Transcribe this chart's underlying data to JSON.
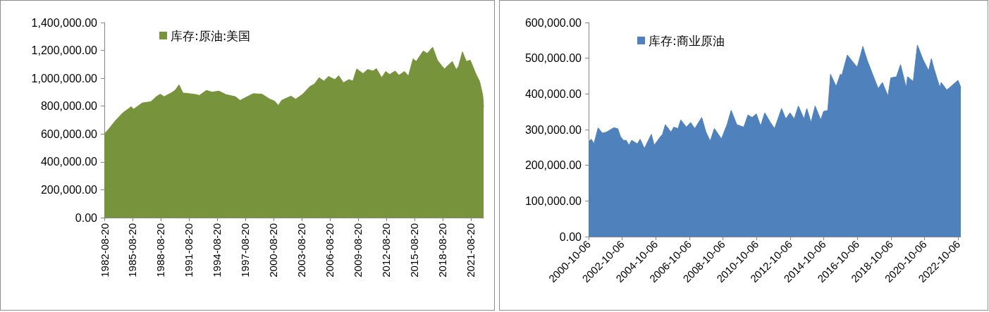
{
  "chart_data": [
    {
      "type": "area",
      "legend": "top left",
      "grid": false,
      "xlim": [
        "1982-08-20",
        "2023-01"
      ],
      "xticks": [
        "1982-08-20",
        "1985-08-20",
        "1988-08-20",
        "1991-08-20",
        "1994-08-20",
        "1997-08-20",
        "2000-08-20",
        "2003-08-20",
        "2006-08-20",
        "2009-08-20",
        "2012-08-20",
        "2015-08-20",
        "2018-08-20",
        "2021-08-20"
      ],
      "ylim": [
        0,
        1400000
      ],
      "yticks": [
        {
          "value": 0,
          "label": "0.00"
        },
        {
          "value": 200000,
          "label": "200,000.00"
        },
        {
          "value": 400000,
          "label": "400,000.00"
        },
        {
          "value": 600000,
          "label": "600,000.00"
        },
        {
          "value": 800000,
          "label": "800,000.00"
        },
        {
          "value": 1000000,
          "label": "1,000,000.00"
        },
        {
          "value": 1200000,
          "label": "1,200,000.00"
        },
        {
          "value": 1400000,
          "label": "1,400,000.00"
        }
      ],
      "x": [
        "1982-08-20",
        "1983-02",
        "1983-11",
        "1984-08",
        "1985-07",
        "1985-10",
        "1986-09",
        "1987-08",
        "1988-03",
        "1988-08",
        "1989-01",
        "1989-10",
        "1990-03",
        "1990-08",
        "1991-01",
        "1991-09",
        "1992-06",
        "1992-10",
        "1993-07",
        "1994-02",
        "1994-11",
        "1995-08",
        "1996-08",
        "1997-02",
        "1997-08",
        "1998-07",
        "1999-06",
        "2000-04",
        "2000-10",
        "2001-03",
        "2001-07",
        "2002-07",
        "2003-01",
        "2003-10",
        "2004-07",
        "2005-01",
        "2005-07",
        "2006-01",
        "2006-07",
        "2007-03",
        "2007-08",
        "2008-02",
        "2008-09",
        "2009-02",
        "2009-07",
        "2010-03",
        "2010-09",
        "2011-04",
        "2011-08",
        "2012-03",
        "2012-08",
        "2013-01",
        "2013-08",
        "2014-01",
        "2014-08",
        "2015-01",
        "2015-07",
        "2015-11",
        "2016-08",
        "2017-01",
        "2017-08",
        "2018-02",
        "2018-07",
        "2018-11",
        "2019-04",
        "2019-09",
        "2020-02",
        "2020-05",
        "2020-10",
        "2021-03",
        "2021-08",
        "2022-03",
        "2022-08",
        "2022-12",
        "2023-01"
      ],
      "series": [
        {
          "name": "库存:原油:美国",
          "color": "#77933c",
          "values": [
            602000,
            634000,
            697000,
            751000,
            796000,
            778000,
            823000,
            832000,
            868000,
            886000,
            868000,
            895000,
            913000,
            953000,
            895000,
            890000,
            883000,
            877000,
            913000,
            901000,
            908000,
            883000,
            868000,
            841000,
            859000,
            890000,
            886000,
            850000,
            836000,
            805000,
            841000,
            872000,
            850000,
            886000,
            940000,
            959000,
            1004000,
            980000,
            1013000,
            991000,
            1018000,
            968000,
            991000,
            980000,
            1067000,
            1034000,
            1063000,
            1052000,
            1070000,
            1004000,
            1049000,
            1027000,
            1052000,
            1022000,
            1049000,
            1016000,
            1139000,
            1121000,
            1196000,
            1178000,
            1223000,
            1130000,
            1094000,
            1067000,
            1094000,
            1121000,
            1063000,
            1085000,
            1189000,
            1121000,
            1130000,
            1034000,
            977000,
            877000,
            796000
          ]
        }
      ]
    },
    {
      "type": "area",
      "legend": "top left",
      "grid": false,
      "xlim": [
        "2000-10-06",
        "2022-12"
      ],
      "xticks": [
        "2000-10-06",
        "2002-10-06",
        "2004-10-06",
        "2006-10-06",
        "2008-10-06",
        "2010-10-06",
        "2012-10-06",
        "2014-10-06",
        "2016-10-06",
        "2018-10-06",
        "2020-10-06",
        "2022-10-06"
      ],
      "ylim": [
        0,
        600000
      ],
      "yticks": [
        {
          "value": 0,
          "label": "0.00"
        },
        {
          "value": 100000,
          "label": "100,000.00"
        },
        {
          "value": 200000,
          "label": "200,000.00"
        },
        {
          "value": 300000,
          "label": "300,000.00"
        },
        {
          "value": 400000,
          "label": "400,000.00"
        },
        {
          "value": 500000,
          "label": "500,000.00"
        },
        {
          "value": 600000,
          "label": "600,000.00"
        }
      ],
      "x": [
        "2000-10-06",
        "2000-12",
        "2001-02",
        "2001-05",
        "2001-08",
        "2001-11",
        "2002-04",
        "2002-07",
        "2002-09",
        "2002-11",
        "2003-01",
        "2003-03",
        "2003-05",
        "2003-09",
        "2003-11",
        "2004-02",
        "2004-07",
        "2004-09",
        "2005-01",
        "2005-03",
        "2005-05",
        "2005-09",
        "2005-11",
        "2006-02",
        "2006-04",
        "2006-08",
        "2006-11",
        "2007-02",
        "2007-07",
        "2007-10",
        "2008-01",
        "2008-04",
        "2008-09",
        "2009-01",
        "2009-04",
        "2009-08",
        "2010-01",
        "2010-04",
        "2010-07",
        "2010-10",
        "2011-01",
        "2011-04",
        "2011-08",
        "2011-11",
        "2012-04",
        "2012-07",
        "2012-10",
        "2013-01",
        "2013-04",
        "2013-08",
        "2013-10",
        "2014-01",
        "2014-04",
        "2014-08",
        "2014-10",
        "2015-01",
        "2015-03",
        "2015-07",
        "2015-10",
        "2015-11",
        "2016-03",
        "2016-07",
        "2016-10",
        "2017-02",
        "2017-05",
        "2017-09",
        "2018-01",
        "2018-04",
        "2018-08",
        "2018-10",
        "2019-02",
        "2019-05",
        "2019-09",
        "2019-10",
        "2020-02",
        "2020-05",
        "2020-09",
        "2021-01",
        "2021-03",
        "2021-05",
        "2021-09",
        "2021-10",
        "2022-02",
        "2022-05",
        "2022-10",
        "2022-12"
      ],
      "series": [
        {
          "name": "库存:商业原油",
          "color": "#4f81bd",
          "values": [
            266000,
            273000,
            261000,
            305000,
            290000,
            293000,
            305000,
            303000,
            280000,
            270000,
            270000,
            256000,
            270000,
            260000,
            273000,
            247000,
            287000,
            256000,
            278000,
            287000,
            314000,
            293000,
            307000,
            303000,
            327000,
            307000,
            320000,
            303000,
            334000,
            293000,
            268000,
            303000,
            274000,
            314000,
            354000,
            314000,
            307000,
            341000,
            334000,
            344000,
            310000,
            347000,
            320000,
            303000,
            359000,
            330000,
            347000,
            330000,
            366000,
            330000,
            359000,
            320000,
            366000,
            327000,
            351000,
            354000,
            455000,
            421000,
            455000,
            452000,
            509000,
            489000,
            475000,
            533000,
            496000,
            455000,
            415000,
            432000,
            394000,
            445000,
            448000,
            482000,
            418000,
            448000,
            435000,
            537000,
            496000,
            465000,
            499000,
            469000,
            418000,
            432000,
            411000,
            421000,
            438000,
            418000
          ]
        }
      ]
    }
  ]
}
